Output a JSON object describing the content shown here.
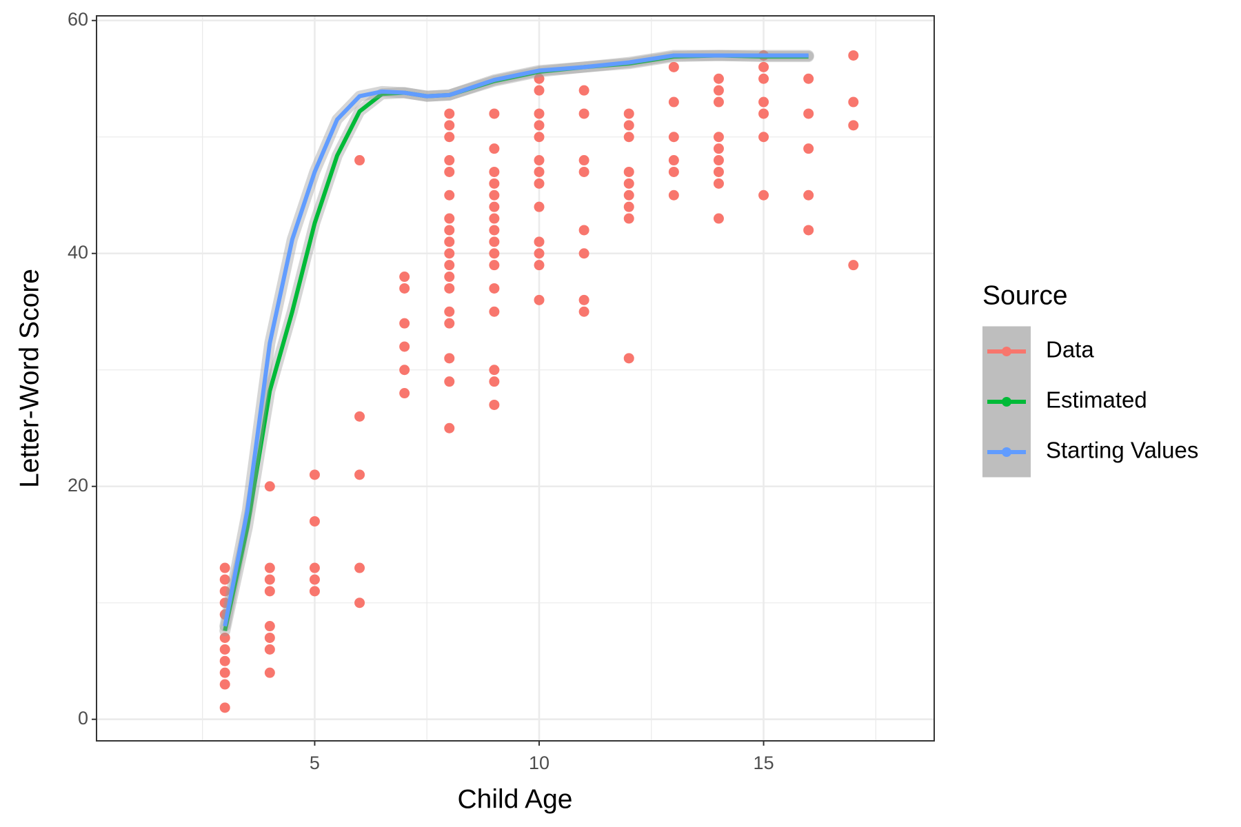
{
  "chart_data": {
    "type": "scatter",
    "x_label": "Child Age",
    "y_label": "Letter-Word Score",
    "legend_title": "Source",
    "legend_position": "right",
    "xlim": [
      0.14,
      18.8
    ],
    "xticks": [
      5,
      10,
      15
    ],
    "ylim": [
      -1.85,
      60.4
    ],
    "yticks": [
      0,
      20,
      40,
      60
    ],
    "grid": true,
    "series": [
      {
        "name": "Data",
        "color": "#F8766D",
        "mode": "markers",
        "x": [
          3,
          3,
          3,
          3,
          3,
          3,
          3,
          3,
          3,
          3,
          3,
          4,
          4,
          4,
          4,
          4,
          4,
          4,
          4,
          5,
          5,
          5,
          5,
          5,
          6,
          6,
          6,
          6,
          6,
          7,
          7,
          7,
          7,
          7,
          7,
          8,
          8,
          8,
          8,
          8,
          8,
          8,
          8,
          8,
          8,
          8,
          8,
          8,
          8,
          8,
          8,
          8,
          8,
          9,
          9,
          9,
          9,
          9,
          9,
          9,
          9,
          9,
          9,
          9,
          9,
          9,
          9,
          9,
          9,
          10,
          10,
          10,
          10,
          10,
          10,
          10,
          10,
          10,
          10,
          10,
          10,
          10,
          11,
          11,
          11,
          11,
          11,
          11,
          11,
          11,
          12,
          12,
          12,
          12,
          12,
          12,
          12,
          12,
          12,
          13,
          13,
          13,
          13,
          13,
          13,
          14,
          14,
          14,
          14,
          14,
          14,
          14,
          14,
          14,
          15,
          15,
          15,
          15,
          15,
          15,
          15,
          16,
          16,
          16,
          16,
          16,
          17,
          17,
          17,
          17
        ],
        "values": [
          13,
          12,
          11,
          10,
          9,
          7,
          6,
          5,
          4,
          3,
          1,
          20,
          13,
          12,
          11,
          8,
          7,
          6,
          4,
          21,
          17,
          13,
          12,
          11,
          48,
          26,
          21,
          13,
          10,
          38,
          37,
          34,
          32,
          30,
          28,
          52,
          51,
          50,
          48,
          47,
          45,
          43,
          42,
          41,
          40,
          39,
          38,
          37,
          35,
          34,
          31,
          29,
          25,
          52,
          49,
          47,
          46,
          45,
          44,
          43,
          42,
          41,
          40,
          39,
          37,
          35,
          30,
          29,
          27,
          55,
          54,
          52,
          51,
          50,
          48,
          47,
          46,
          44,
          41,
          40,
          39,
          36,
          54,
          52,
          48,
          47,
          42,
          40,
          36,
          35,
          52,
          51,
          50,
          47,
          46,
          45,
          44,
          43,
          31,
          56,
          53,
          50,
          48,
          47,
          45,
          55,
          54,
          53,
          50,
          49,
          48,
          47,
          46,
          43,
          57,
          56,
          55,
          53,
          52,
          50,
          45,
          55,
          52,
          49,
          45,
          42,
          57,
          53,
          51,
          39
        ]
      },
      {
        "name": "Estimated",
        "color": "#00BA38",
        "mode": "lines",
        "x": [
          3,
          3.5,
          4,
          4.5,
          5,
          5.5,
          6,
          6.5,
          7,
          7.5,
          8,
          9,
          10,
          11,
          12,
          13,
          14,
          15,
          16
        ],
        "values": [
          7.6,
          16.5,
          28.2,
          35,
          42.6,
          48.4,
          52.2,
          53.7,
          53.8,
          53.5,
          53.6,
          54.8,
          55.6,
          56,
          56.3,
          56.9,
          57,
          56.9,
          56.9
        ]
      },
      {
        "name": "Starting Values",
        "color": "#619CFF",
        "mode": "lines",
        "x": [
          3,
          3.5,
          4,
          4.5,
          5,
          5.5,
          6,
          6.5,
          7,
          7.5,
          8,
          9,
          10,
          11,
          12,
          13,
          14,
          15,
          16
        ],
        "values": [
          8,
          17.9,
          32.3,
          41.2,
          47,
          51.5,
          53.5,
          53.9,
          53.8,
          53.5,
          53.6,
          54.9,
          55.7,
          56,
          56.4,
          57,
          57,
          57,
          57
        ]
      }
    ]
  }
}
